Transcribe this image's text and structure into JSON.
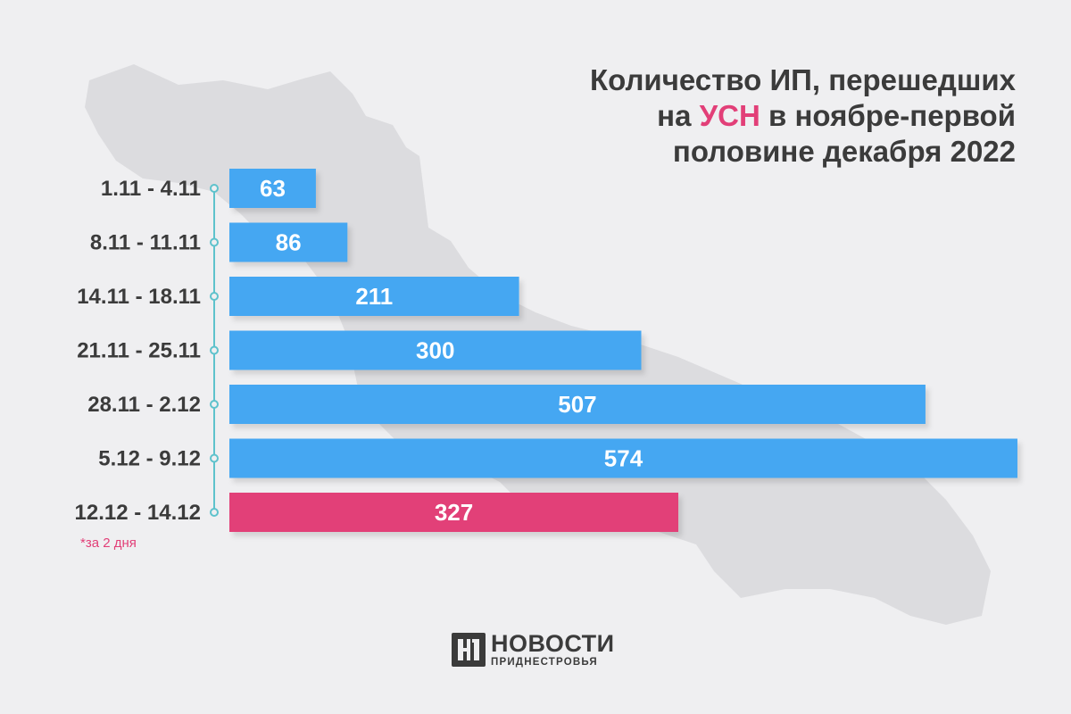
{
  "title": {
    "line1": "Количество ИП, перешедших",
    "line2_before": "на ",
    "line2_highlight": "УСН",
    "line2_after": " в ноябре-первой",
    "line3": "половине декабря 2022"
  },
  "note": "*за 2 дня",
  "logo": {
    "main": "НОВОСТИ",
    "sub": "ПРИДНЕСТРОВЬЯ",
    "icon": "np-logo-icon"
  },
  "colors": {
    "bar": "#45a7f2",
    "bar_highlight": "#e23f78",
    "timeline": "#5ec2cc",
    "text": "#3b3b3b",
    "map": "#d9d9dc"
  },
  "chart_data": {
    "type": "bar",
    "orientation": "horizontal",
    "categories": [
      "1.11 - 4.11",
      "8.11 - 11.11",
      "14.11 - 18.11",
      "21.11 - 25.11",
      "28.11 - 2.12",
      "5.12 - 9.12",
      "12.12 - 14.12"
    ],
    "values": [
      63,
      86,
      211,
      300,
      507,
      574,
      327
    ],
    "highlight_index": 6,
    "title": "Количество ИП, перешедших на УСН в ноябре-первой половине декабря 2022",
    "xlim": [
      0,
      574
    ]
  }
}
